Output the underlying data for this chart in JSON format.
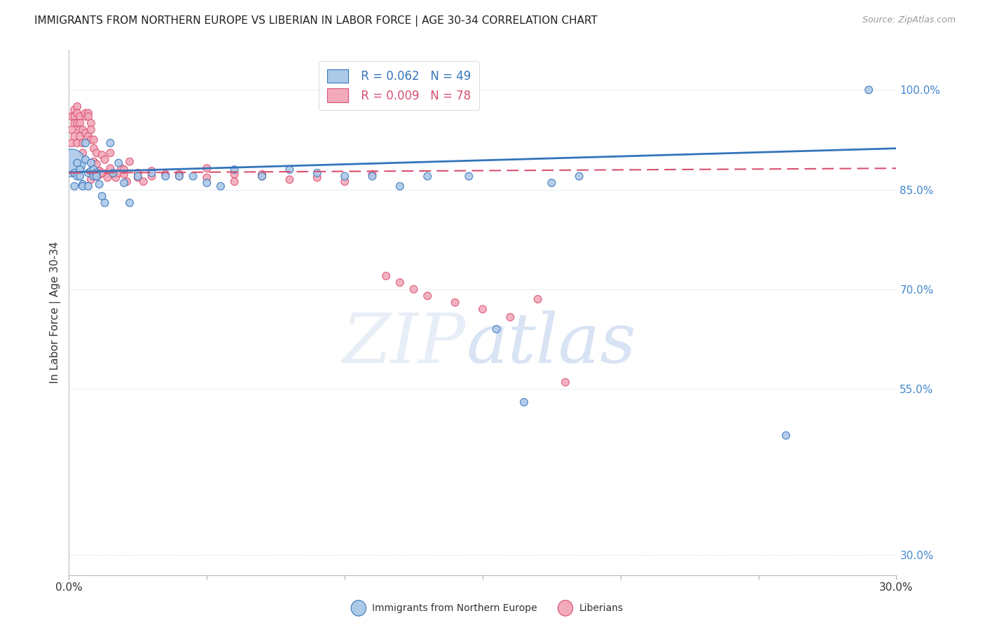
{
  "title": "IMMIGRANTS FROM NORTHERN EUROPE VS LIBERIAN IN LABOR FORCE | AGE 30-34 CORRELATION CHART",
  "source": "Source: ZipAtlas.com",
  "ylabel": "In Labor Force | Age 30-34",
  "y_tick_labels": [
    "100.0%",
    "85.0%",
    "70.0%",
    "55.0%",
    "30.0%"
  ],
  "y_ticks": [
    1.0,
    0.85,
    0.7,
    0.55,
    0.3
  ],
  "xlim": [
    0.0,
    0.3
  ],
  "ylim": [
    0.27,
    1.06
  ],
  "legend_r_blue": "R = 0.062",
  "legend_n_blue": "N = 49",
  "legend_r_pink": "R = 0.009",
  "legend_n_pink": "N = 78",
  "legend_label_blue": "Immigrants from Northern Europe",
  "legend_label_pink": "Liberians",
  "blue_color": "#adc9e8",
  "blue_line_color": "#3474ba",
  "pink_color": "#f2aabb",
  "pink_line_color": "#d95070",
  "grid_color": "#c8d4e4",
  "blue_R": 0.062,
  "pink_R": 0.009,
  "blue_scatter_x": [
    0.001,
    0.002,
    0.002,
    0.003,
    0.003,
    0.004,
    0.004,
    0.005,
    0.005,
    0.006,
    0.006,
    0.007,
    0.007,
    0.008,
    0.008,
    0.009,
    0.009,
    0.01,
    0.01,
    0.011,
    0.012,
    0.013,
    0.015,
    0.016,
    0.018,
    0.02,
    0.022,
    0.025,
    0.03,
    0.035,
    0.04,
    0.045,
    0.05,
    0.055,
    0.06,
    0.07,
    0.08,
    0.09,
    0.1,
    0.11,
    0.12,
    0.13,
    0.145,
    0.155,
    0.165,
    0.175,
    0.185,
    0.26,
    0.29
  ],
  "blue_scatter_y": [
    0.89,
    0.875,
    0.855,
    0.89,
    0.87,
    0.88,
    0.87,
    0.858,
    0.855,
    0.895,
    0.92,
    0.875,
    0.855,
    0.89,
    0.878,
    0.88,
    0.87,
    0.875,
    0.87,
    0.858,
    0.84,
    0.83,
    0.92,
    0.875,
    0.89,
    0.86,
    0.83,
    0.87,
    0.875,
    0.87,
    0.87,
    0.87,
    0.86,
    0.855,
    0.88,
    0.87,
    0.88,
    0.875,
    0.87,
    0.87,
    0.855,
    0.87,
    0.87,
    0.64,
    0.53,
    0.86,
    0.87,
    0.48,
    1.0
  ],
  "blue_scatter_s": [
    800,
    60,
    60,
    60,
    60,
    60,
    60,
    60,
    60,
    60,
    60,
    60,
    60,
    60,
    60,
    60,
    60,
    60,
    60,
    60,
    60,
    60,
    60,
    60,
    60,
    60,
    60,
    60,
    60,
    60,
    60,
    60,
    60,
    60,
    60,
    60,
    60,
    60,
    60,
    60,
    60,
    60,
    60,
    60,
    60,
    60,
    60,
    60,
    60
  ],
  "pink_scatter_x": [
    0.001,
    0.001,
    0.001,
    0.002,
    0.002,
    0.002,
    0.002,
    0.003,
    0.003,
    0.003,
    0.003,
    0.004,
    0.004,
    0.004,
    0.004,
    0.005,
    0.005,
    0.005,
    0.006,
    0.006,
    0.006,
    0.007,
    0.007,
    0.007,
    0.008,
    0.008,
    0.008,
    0.009,
    0.009,
    0.009,
    0.01,
    0.01,
    0.011,
    0.011,
    0.012,
    0.013,
    0.014,
    0.015,
    0.015,
    0.016,
    0.017,
    0.018,
    0.019,
    0.02,
    0.021,
    0.022,
    0.025,
    0.027,
    0.03,
    0.035,
    0.04,
    0.05,
    0.06,
    0.07,
    0.08,
    0.09,
    0.1,
    0.11,
    0.115,
    0.12,
    0.125,
    0.13,
    0.14,
    0.15,
    0.16,
    0.17,
    0.18,
    0.01,
    0.008,
    0.012,
    0.014,
    0.02,
    0.025,
    0.03,
    0.04,
    0.05,
    0.06,
    0.07
  ],
  "pink_scatter_y": [
    0.96,
    0.94,
    0.92,
    0.97,
    0.96,
    0.95,
    0.93,
    0.975,
    0.965,
    0.95,
    0.92,
    0.96,
    0.95,
    0.94,
    0.93,
    0.94,
    0.92,
    0.905,
    0.935,
    0.96,
    0.965,
    0.965,
    0.96,
    0.93,
    0.925,
    0.95,
    0.94,
    0.925,
    0.912,
    0.892,
    0.905,
    0.888,
    0.878,
    0.872,
    0.902,
    0.895,
    0.875,
    0.905,
    0.882,
    0.873,
    0.868,
    0.875,
    0.882,
    0.873,
    0.862,
    0.892,
    0.868,
    0.862,
    0.878,
    0.873,
    0.873,
    0.882,
    0.862,
    0.873,
    0.865,
    0.868,
    0.862,
    0.873,
    0.72,
    0.71,
    0.7,
    0.69,
    0.68,
    0.67,
    0.658,
    0.685,
    0.56,
    0.87,
    0.865,
    0.875,
    0.868,
    0.88,
    0.875,
    0.87,
    0.87,
    0.868,
    0.873,
    0.87
  ],
  "pink_scatter_s": [
    60,
    60,
    60,
    60,
    60,
    60,
    60,
    60,
    60,
    60,
    60,
    60,
    60,
    60,
    60,
    60,
    60,
    60,
    60,
    60,
    60,
    60,
    60,
    60,
    60,
    60,
    60,
    60,
    60,
    60,
    60,
    60,
    60,
    60,
    60,
    60,
    60,
    60,
    60,
    60,
    60,
    60,
    60,
    60,
    60,
    60,
    60,
    60,
    60,
    60,
    60,
    60,
    60,
    60,
    60,
    60,
    60,
    60,
    60,
    60,
    60,
    60,
    60,
    60,
    60,
    60,
    60,
    60,
    60,
    60,
    60,
    60,
    60,
    60,
    60,
    60,
    60,
    60
  ]
}
